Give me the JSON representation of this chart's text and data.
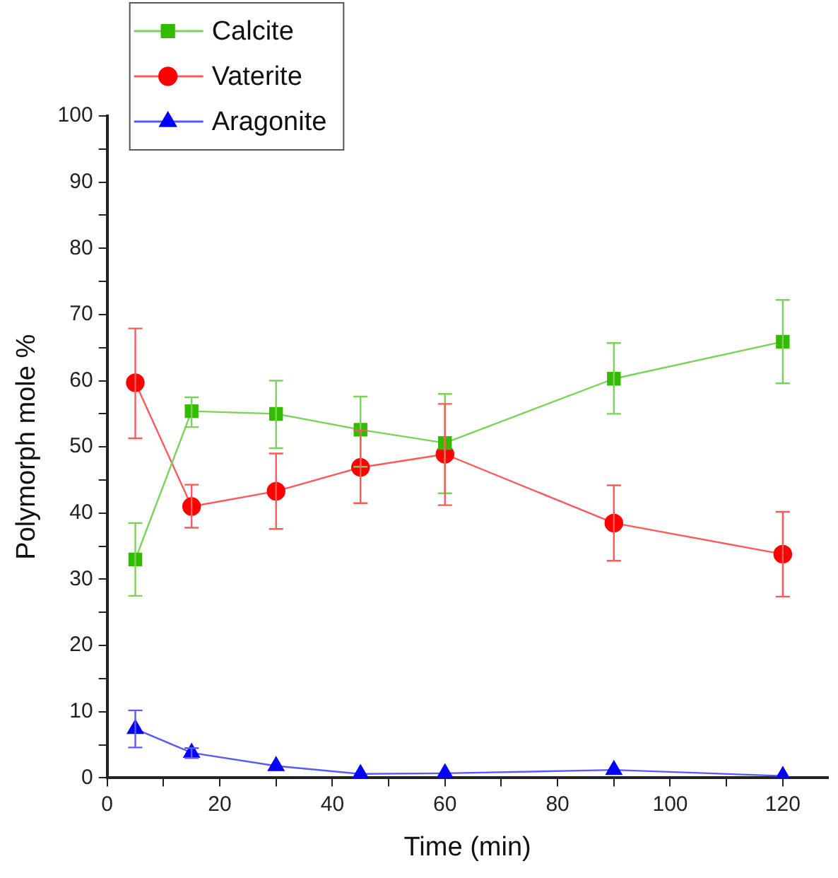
{
  "chart_data": {
    "type": "line",
    "xlabel": "Time (min)",
    "ylabel": "Polymorph mole %",
    "x": [
      5,
      15,
      30,
      45,
      60,
      90,
      120
    ],
    "series": [
      {
        "name": "Calcite",
        "color": "#33bb00",
        "marker": "square",
        "values": [
          33,
          55.4,
          55,
          52.6,
          50.6,
          60.3,
          65.9
        ],
        "errors": [
          [
            27.5,
            38.5
          ],
          [
            53,
            57.5
          ],
          [
            49.8,
            60
          ],
          [
            47,
            57.6
          ],
          [
            43,
            58
          ],
          [
            55,
            65.7
          ],
          [
            59.6,
            72.2
          ]
        ]
      },
      {
        "name": "Vaterite",
        "color": "#ff0000",
        "marker": "circle",
        "values": [
          59.7,
          41,
          43.3,
          46.9,
          48.9,
          38.5,
          33.8
        ],
        "errors": [
          [
            51.3,
            67.9
          ],
          [
            37.8,
            44.3
          ],
          [
            37.6,
            49
          ],
          [
            41.5,
            52.5
          ],
          [
            41.2,
            56.5
          ],
          [
            32.8,
            44.2
          ],
          [
            27.4,
            40.2
          ]
        ]
      },
      {
        "name": "Aragonite",
        "color": "#0000ff",
        "marker": "triangle",
        "values": [
          7.4,
          3.8,
          1.8,
          0.6,
          0.7,
          1.2,
          0.3
        ],
        "errors": [
          [
            4.6,
            10.2
          ],
          [
            3,
            4.5
          ],
          null,
          null,
          null,
          null,
          null
        ]
      }
    ],
    "xlim": [
      0,
      128
    ],
    "xticks": [
      0,
      {
        "value": 10,
        "label": null
      },
      20,
      {
        "value": 30,
        "label": null
      },
      40,
      {
        "value": 50,
        "label": null
      },
      60,
      {
        "value": 70,
        "label": null
      },
      80,
      {
        "value": 90,
        "label": null
      },
      100,
      {
        "value": 110,
        "label": null
      },
      120
    ],
    "ylim": [
      0,
      100
    ],
    "yticks": [
      0,
      {
        "value": 5,
        "label": null
      },
      10,
      {
        "value": 15,
        "label": null
      },
      20,
      {
        "value": 25,
        "label": null
      },
      30,
      {
        "value": 35,
        "label": null
      },
      40,
      {
        "value": 45,
        "label": null
      },
      50,
      {
        "value": 55,
        "label": null
      },
      60,
      {
        "value": 65,
        "label": null
      },
      70,
      {
        "value": 75,
        "label": null
      },
      80,
      {
        "value": 85,
        "label": null
      },
      90,
      {
        "value": 95,
        "label": null
      },
      100
    ],
    "grid": false,
    "legend": "top left",
    "line_style": "solid"
  }
}
